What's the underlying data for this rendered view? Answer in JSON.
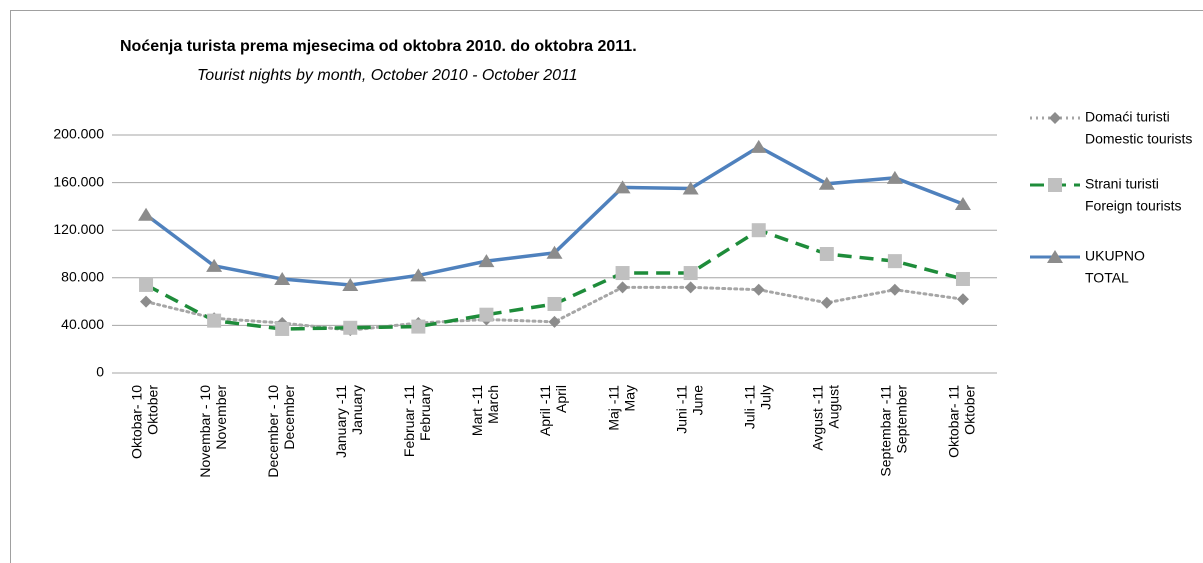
{
  "chart_data": {
    "type": "line",
    "title": "Noćenja turista prema mjesecima od oktobra 2010. do oktobra 2011.",
    "subtitle": "Tourist nights by month,  October 2010 - October 2011",
    "categories": [
      [
        "Oktobar- 10",
        "Oktober"
      ],
      [
        "Novembar - 10",
        "November"
      ],
      [
        "December - 10",
        "December"
      ],
      [
        "January -11",
        "January"
      ],
      [
        "Februar -11",
        "February"
      ],
      [
        "Mart -11",
        "March"
      ],
      [
        "April  -11",
        "April"
      ],
      [
        "Maj  -11",
        "May"
      ],
      [
        "Juni  -11",
        "June"
      ],
      [
        "Juli  -11",
        "July"
      ],
      [
        "Avgust -11",
        "August"
      ],
      [
        "Septembar -11",
        "September"
      ],
      [
        "Oktobar- 11",
        "Oktober"
      ]
    ],
    "series": [
      {
        "name": [
          "Domaći turisti",
          "Domestic tourists"
        ],
        "color": "#a6a6a6",
        "marker": "diamond",
        "marker_color": "#8c8c8c",
        "line": "dotted",
        "values": [
          60000,
          46000,
          42000,
          36000,
          42000,
          45000,
          43000,
          72000,
          72000,
          70000,
          59000,
          70000,
          62000
        ]
      },
      {
        "name": [
          "Strani turisti",
          "Foreign tourists"
        ],
        "color": "#1e8c3a",
        "marker": "square",
        "marker_color": "#c0c0c0",
        "line": "dashed",
        "values": [
          74000,
          44000,
          37000,
          38000,
          39000,
          49000,
          58000,
          84000,
          84000,
          120000,
          100000,
          94000,
          79000
        ]
      },
      {
        "name": [
          "UKUPNO",
          "TOTAL"
        ],
        "color": "#4f81bd",
        "marker": "triangle",
        "marker_color": "#8c8c8c",
        "line": "solid",
        "values": [
          133000,
          90000,
          79000,
          74000,
          82000,
          94000,
          101000,
          156000,
          155000,
          190000,
          159000,
          164000,
          142000
        ]
      }
    ],
    "ylim": [
      0,
      200000
    ],
    "yticks": [
      0,
      {
        "value": 40000,
        "label": "40.000"
      },
      {
        "value": 80000,
        "label": "80.000"
      },
      {
        "value": 120000,
        "label": "120.000"
      },
      {
        "value": 160000,
        "label": "160.000"
      },
      {
        "value": 200000,
        "label": "200.000"
      }
    ],
    "grid": true,
    "legend": "right"
  }
}
